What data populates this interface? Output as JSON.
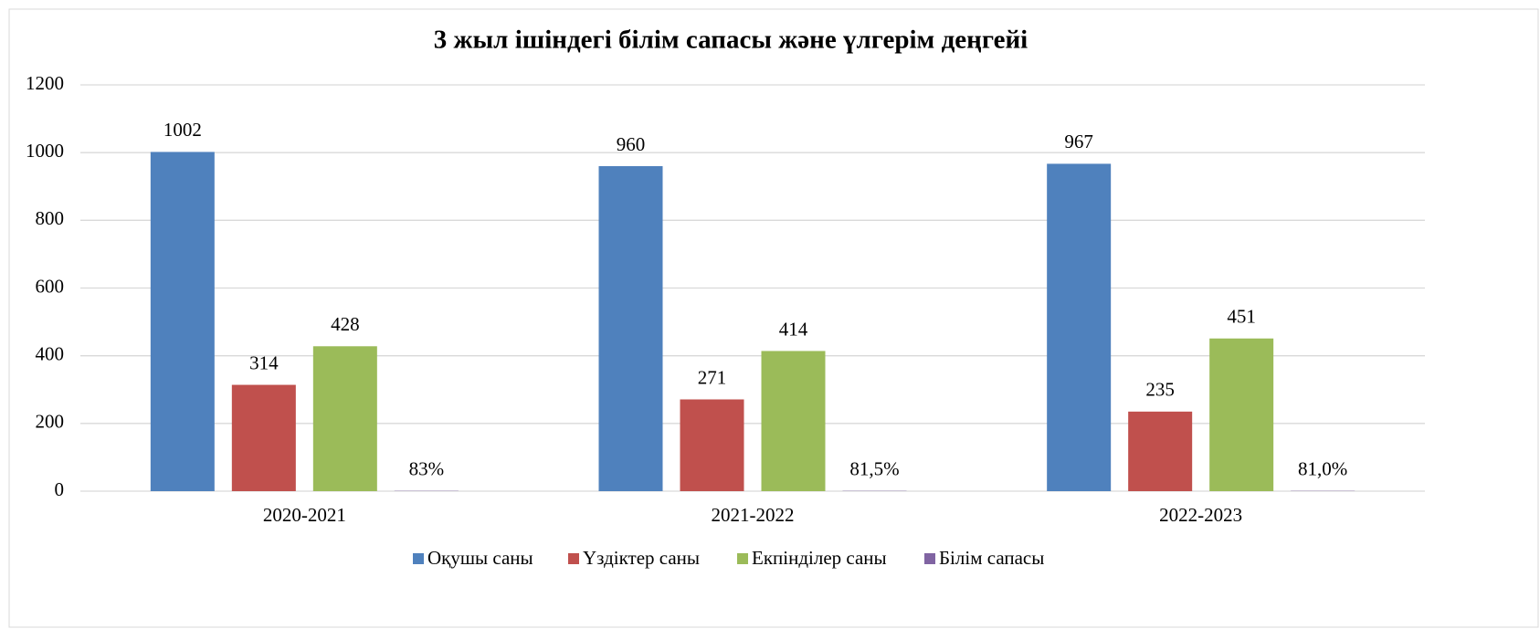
{
  "chart_data": {
    "type": "bar",
    "title": "3 жыл ішіндегі білім сапасы және үлгерім деңгейі",
    "categories": [
      "2020-2021",
      "2021-2022",
      "2022-2023"
    ],
    "series": [
      {
        "name": "Оқушы саны",
        "color": "#4f81bd",
        "values": [
          1002,
          960,
          967
        ]
      },
      {
        "name": "Үздіктер саны",
        "color": "#c0504d",
        "values": [
          314,
          271,
          235
        ]
      },
      {
        "name": "Екпінділер саны",
        "color": "#9bbb59",
        "values": [
          428,
          414,
          451
        ]
      },
      {
        "name": "Білім сапасы",
        "color": "#8064a2",
        "values": [
          0.83,
          0.815,
          0.81
        ],
        "value_labels": [
          "83%",
          "81,5%",
          "81,0%"
        ]
      }
    ],
    "ylim": [
      0,
      1200
    ],
    "yticks": [
      0,
      200,
      400,
      600,
      800,
      1000,
      1200
    ],
    "grid": true,
    "legend": "bottom"
  }
}
